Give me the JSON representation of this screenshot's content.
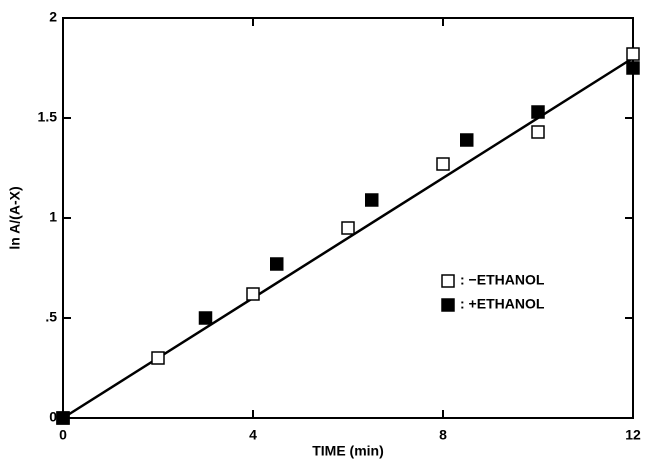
{
  "chart_data": {
    "type": "scatter",
    "x_label": "TIME (min)",
    "y_label": "ln A/(A-X)",
    "xlim": [
      0,
      12
    ],
    "ylim": [
      0,
      2
    ],
    "xticks": [
      0,
      4,
      8,
      12
    ],
    "yticks": [
      0,
      {
        "value": 0.5,
        "label": ".5"
      },
      1,
      1.5,
      2
    ],
    "legend": "right",
    "series": [
      {
        "name": ": −ETHANOL",
        "color": "#000000",
        "filled": false,
        "x": [
          0,
          2,
          4,
          6,
          8,
          10,
          12
        ],
        "values": [
          0,
          0.3,
          0.62,
          0.95,
          1.27,
          1.43,
          1.82
        ]
      },
      {
        "name": ": +ETHANOL",
        "color": "#000000",
        "filled": true,
        "x": [
          0,
          3,
          4.5,
          6.5,
          8.5,
          10,
          12
        ],
        "values": [
          0,
          0.5,
          0.77,
          1.09,
          1.39,
          1.53,
          1.75
        ]
      }
    ],
    "fit_line": {
      "x": [
        0,
        12
      ],
      "values": [
        0,
        1.8
      ]
    }
  }
}
